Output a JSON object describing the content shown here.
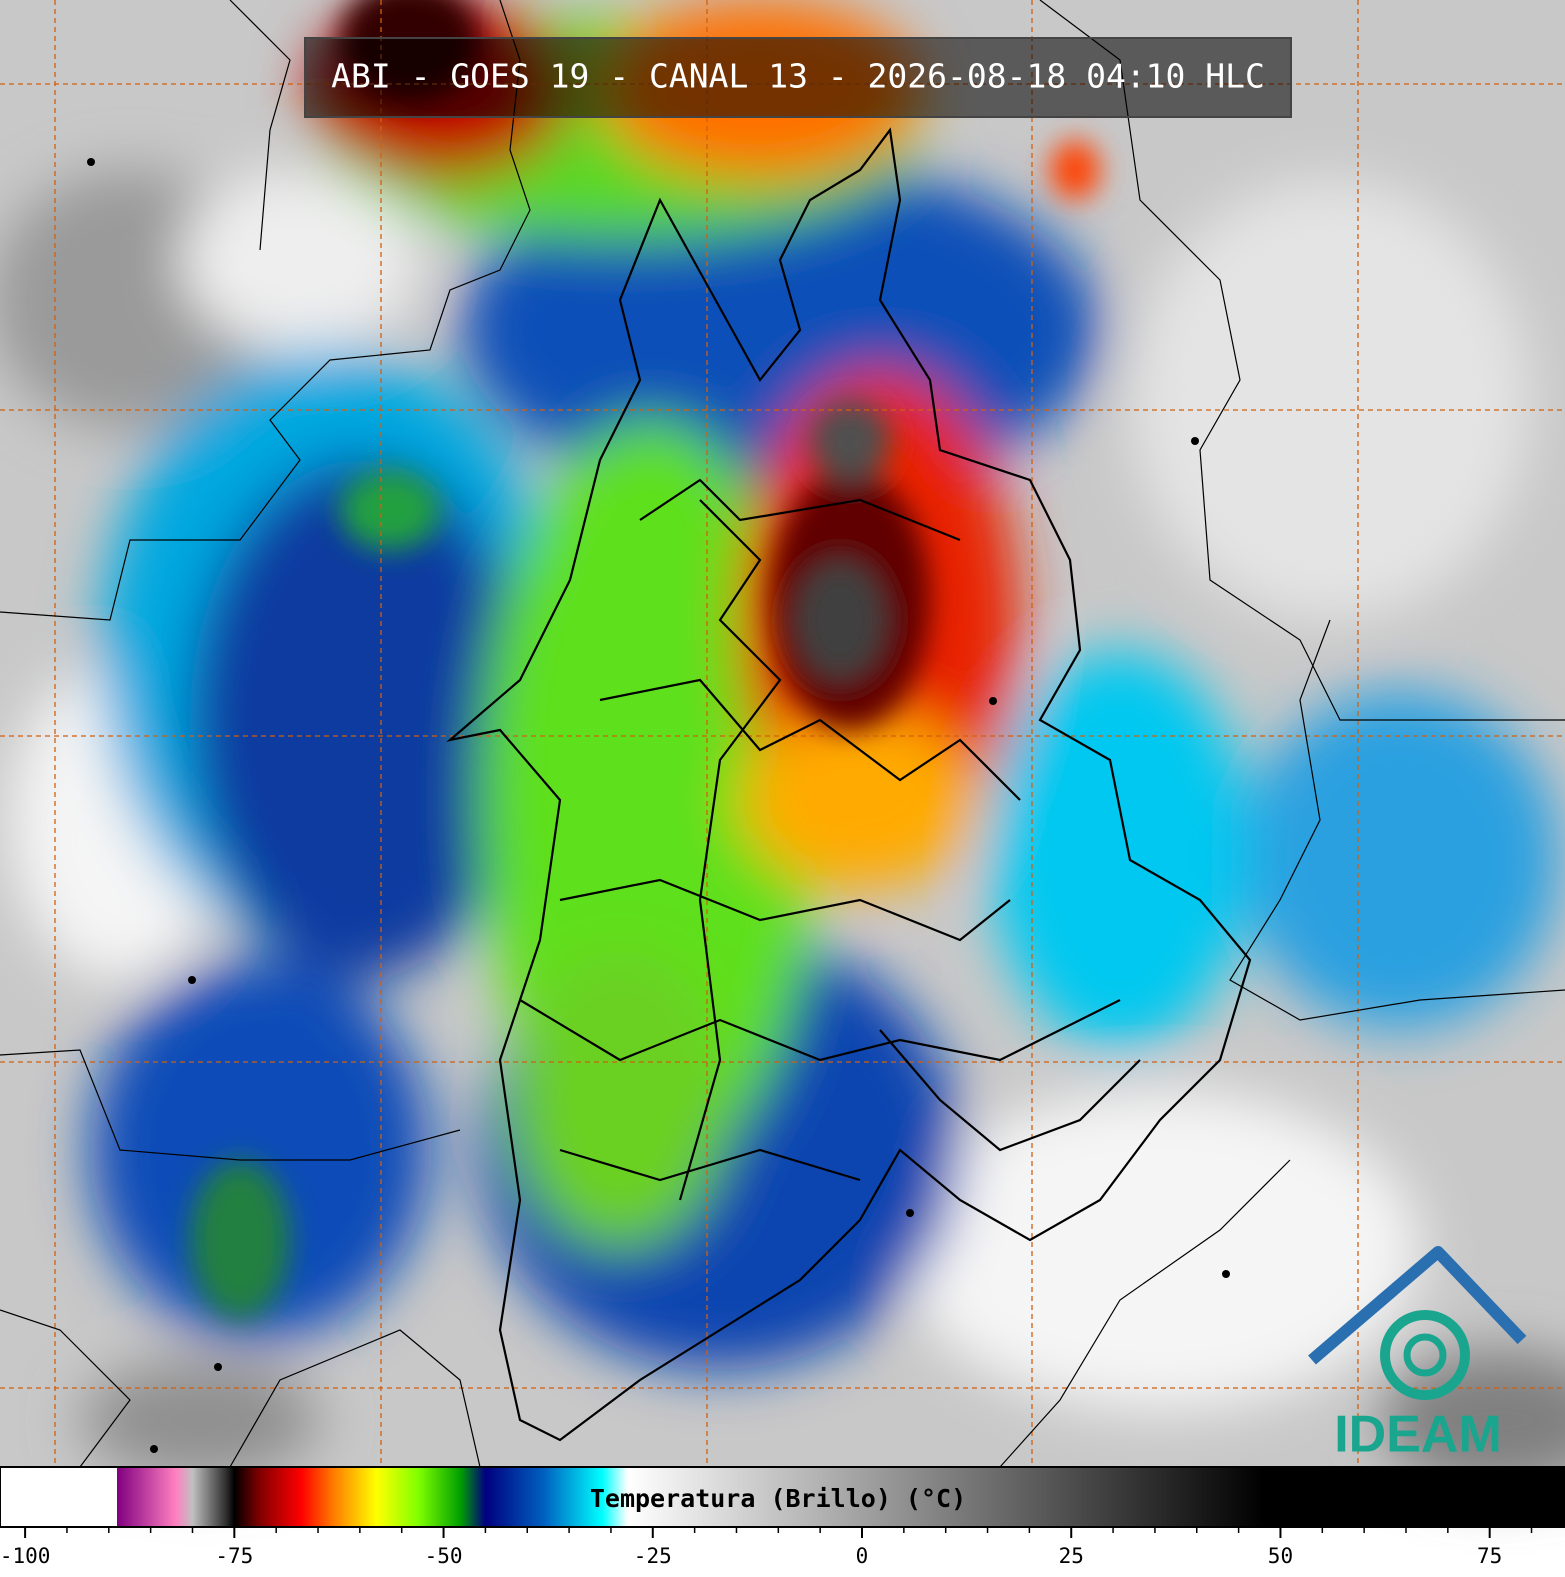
{
  "header": {
    "title": "ABI - GOES 19 - CANAL 13 - 2026-08-18 04:10 HLC"
  },
  "colorbar": {
    "label": "Temperatura (Brillo) (°C)",
    "xlim": [
      -103,
      84
    ],
    "xticks": [
      -100,
      -75,
      -50,
      -25,
      0,
      25,
      50,
      75
    ],
    "xminorticks": [
      -95,
      -90,
      -85,
      -80,
      -70,
      -65,
      -60,
      -55,
      -45,
      -40,
      -35,
      -30,
      -20,
      -15,
      -10,
      -5,
      5,
      10,
      15,
      20,
      30,
      35,
      40,
      45,
      55,
      60,
      65,
      70,
      80
    ],
    "colormap": [
      {
        "value": -103,
        "color": "#ffffff"
      },
      {
        "value": -89,
        "color": "#ffffff"
      },
      {
        "value": -89,
        "color": "#800080"
      },
      {
        "value": -82,
        "color": "#ff80c0"
      },
      {
        "value": -80,
        "color": "#c0c0c0"
      },
      {
        "value": -76,
        "color": "#303030"
      },
      {
        "value": -75,
        "color": "#000000"
      },
      {
        "value": -72,
        "color": "#800000"
      },
      {
        "value": -67,
        "color": "#ff0000"
      },
      {
        "value": -63,
        "color": "#ff8000"
      },
      {
        "value": -58,
        "color": "#ffff00"
      },
      {
        "value": -53,
        "color": "#80ff00"
      },
      {
        "value": -48,
        "color": "#00a000"
      },
      {
        "value": -45,
        "color": "#000080"
      },
      {
        "value": -38,
        "color": "#0060c0"
      },
      {
        "value": -31,
        "color": "#00ffff"
      },
      {
        "value": -28,
        "color": "#ffffff"
      },
      {
        "value": 48,
        "color": "#000000"
      },
      {
        "value": 84,
        "color": "#000000"
      }
    ]
  },
  "logo": {
    "text": "IDEAM"
  }
}
